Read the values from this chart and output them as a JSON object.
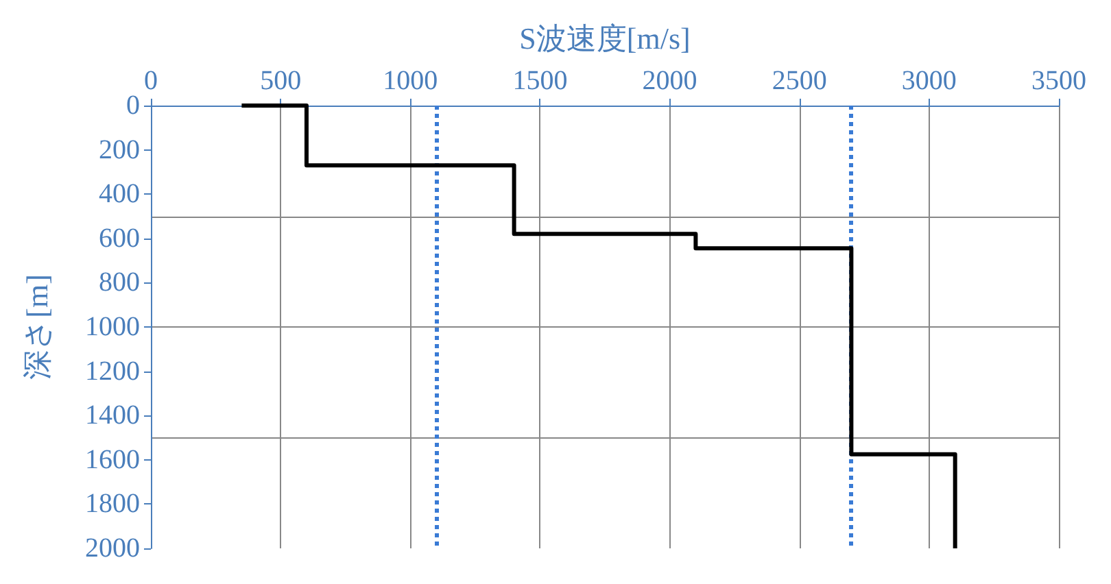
{
  "chart_data": {
    "type": "line",
    "xlabel": "S波速度[m/s]",
    "ylabel": "深さ[m]",
    "xlim": [
      0,
      3500
    ],
    "xticks": [
      0,
      500,
      1000,
      1500,
      2000,
      2500,
      3000,
      3500
    ],
    "ylim": [
      2000,
      0
    ],
    "yticks": [
      0,
      200,
      400,
      {
        "value": 500,
        "label": null
      },
      600,
      800,
      1000,
      {
        "value": 1000,
        "label": null
      },
      1200,
      1400,
      {
        "value": 1500,
        "label": null
      },
      1600,
      1800,
      2000
    ],
    "series": [
      {
        "color": "#000000",
        "x": [
          350,
          600,
          600,
          1400,
          1400,
          2100,
          2100,
          2700,
          2700,
          3100,
          3100
        ],
        "values": [
          0,
          0,
          270,
          270,
          580,
          580,
          645,
          645,
          1575,
          1575,
          2000
        ]
      }
    ],
    "ref_lines": [
      {
        "axis": "x",
        "value": 1100,
        "color": "#3a7bd5",
        "line_style": "dotted"
      },
      {
        "axis": "x",
        "value": 2700,
        "color": "#3a7bd5",
        "line_style": "dotted"
      }
    ],
    "grid": true,
    "marker": "none",
    "line_style": "solid"
  }
}
